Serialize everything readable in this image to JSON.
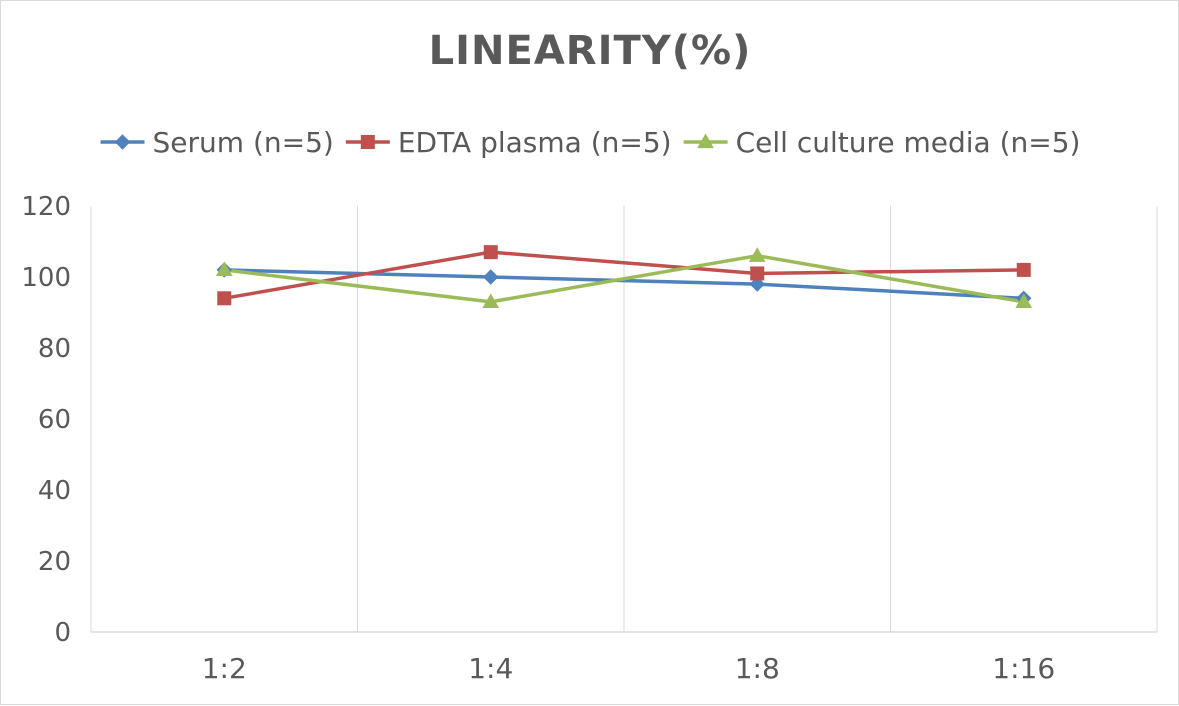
{
  "chart_data": {
    "type": "line",
    "title": "LINEARITY(%)",
    "categories": [
      "1:2",
      "1:4",
      "1:8",
      "1:16"
    ],
    "ylim": [
      0,
      120
    ],
    "yticks": [
      0,
      20,
      40,
      60,
      80,
      100,
      120
    ],
    "grid": "vertical",
    "legend_position": "top",
    "series": [
      {
        "name": "Serum (n=5)",
        "values": [
          102,
          100,
          98,
          94
        ],
        "color": "#4f81bd",
        "marker": "diamond"
      },
      {
        "name": "EDTA plasma (n=5)",
        "values": [
          94,
          107,
          101,
          102
        ],
        "color": "#c0504d",
        "marker": "square"
      },
      {
        "name": "Cell culture media (n=5)",
        "values": [
          102,
          93,
          106,
          93
        ],
        "color": "#9bbb59",
        "marker": "triangle"
      }
    ]
  }
}
